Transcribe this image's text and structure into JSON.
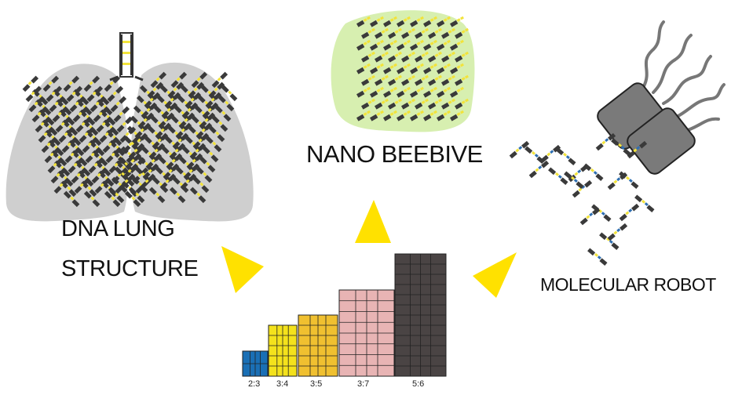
{
  "labels": {
    "lung_line1": "DNA LUNG",
    "lung_line2": "STRUCTURE",
    "hive": "NANO BEEBIVE",
    "robot": "MOLECULAR ROBOT"
  },
  "blocks": [
    {
      "ratio": "2:3",
      "color": "#1a6fb5"
    },
    {
      "ratio": "3:4",
      "color": "#f4e21c"
    },
    {
      "ratio": "3:5",
      "color": "#f0c030"
    },
    {
      "ratio": "3:7",
      "color": "#e8b4b4"
    },
    {
      "ratio": "5:6",
      "color": "#4a4444"
    }
  ],
  "colors": {
    "lung": "#cfcfcf",
    "hive": "#d7efb0",
    "arrow": "#ffe100",
    "strand_dark": "#3a3a3a",
    "strand_yellow": "#f2e33a",
    "strand_pink": "#e0a0a0",
    "robot_body": "#7a7a7a"
  },
  "icons": [
    "triangle-arrow-icon",
    "dna-brick-icon"
  ]
}
